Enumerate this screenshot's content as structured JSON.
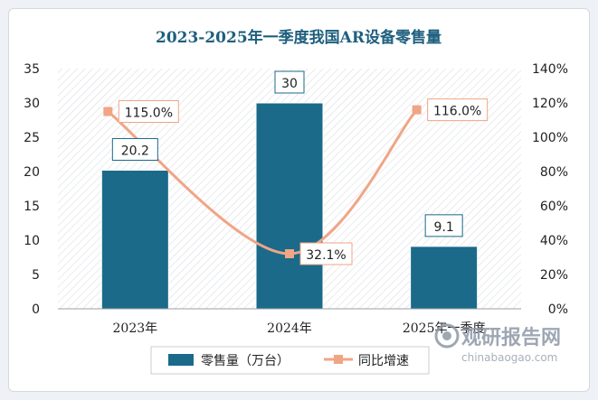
{
  "chart_data": {
    "type": "bar",
    "title": "2023-2025年一季度我国AR设备零售量",
    "categories": [
      "2023年",
      "2024年",
      "2025年一季度"
    ],
    "series": [
      {
        "name": "零售量（万台）",
        "type": "bar",
        "axis": "left",
        "values": [
          20.2,
          30,
          9.1
        ],
        "labels": [
          "20.2",
          "30",
          "9.1"
        ]
      },
      {
        "name": "同比增速",
        "type": "line",
        "axis": "right",
        "values": [
          115.0,
          32.1,
          116.0
        ],
        "labels": [
          "115.0%",
          "32.1%",
          "116.0%"
        ]
      }
    ],
    "y_left": {
      "min": 0,
      "max": 35,
      "step": 5,
      "ticks": [
        "0",
        "5",
        "10",
        "15",
        "20",
        "25",
        "30",
        "35"
      ]
    },
    "y_right": {
      "min": 0,
      "max": 140,
      "step": 20,
      "ticks": [
        "0%",
        "20%",
        "40%",
        "60%",
        "80%",
        "100%",
        "120%",
        "140%"
      ]
    },
    "legend_position": "bottom",
    "grid": false
  },
  "colors": {
    "bar": "#1b6a8a",
    "line": "#f0a585",
    "title": "#1e5f7e"
  },
  "watermark": {
    "main": "观研报告网",
    "sub": "chinabaogao.com",
    "icon": "eye-logo-icon"
  }
}
